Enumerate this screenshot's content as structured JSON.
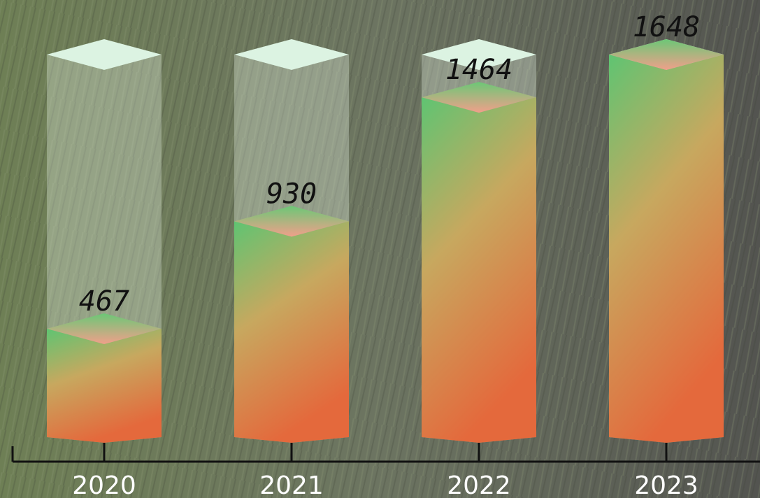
{
  "chart_data": {
    "type": "bar3d",
    "categories": [
      "2020",
      "2021",
      "2022",
      "2023"
    ],
    "values": [
      467,
      930,
      1464,
      1648
    ],
    "ylim": [
      0,
      1648
    ]
  }
}
